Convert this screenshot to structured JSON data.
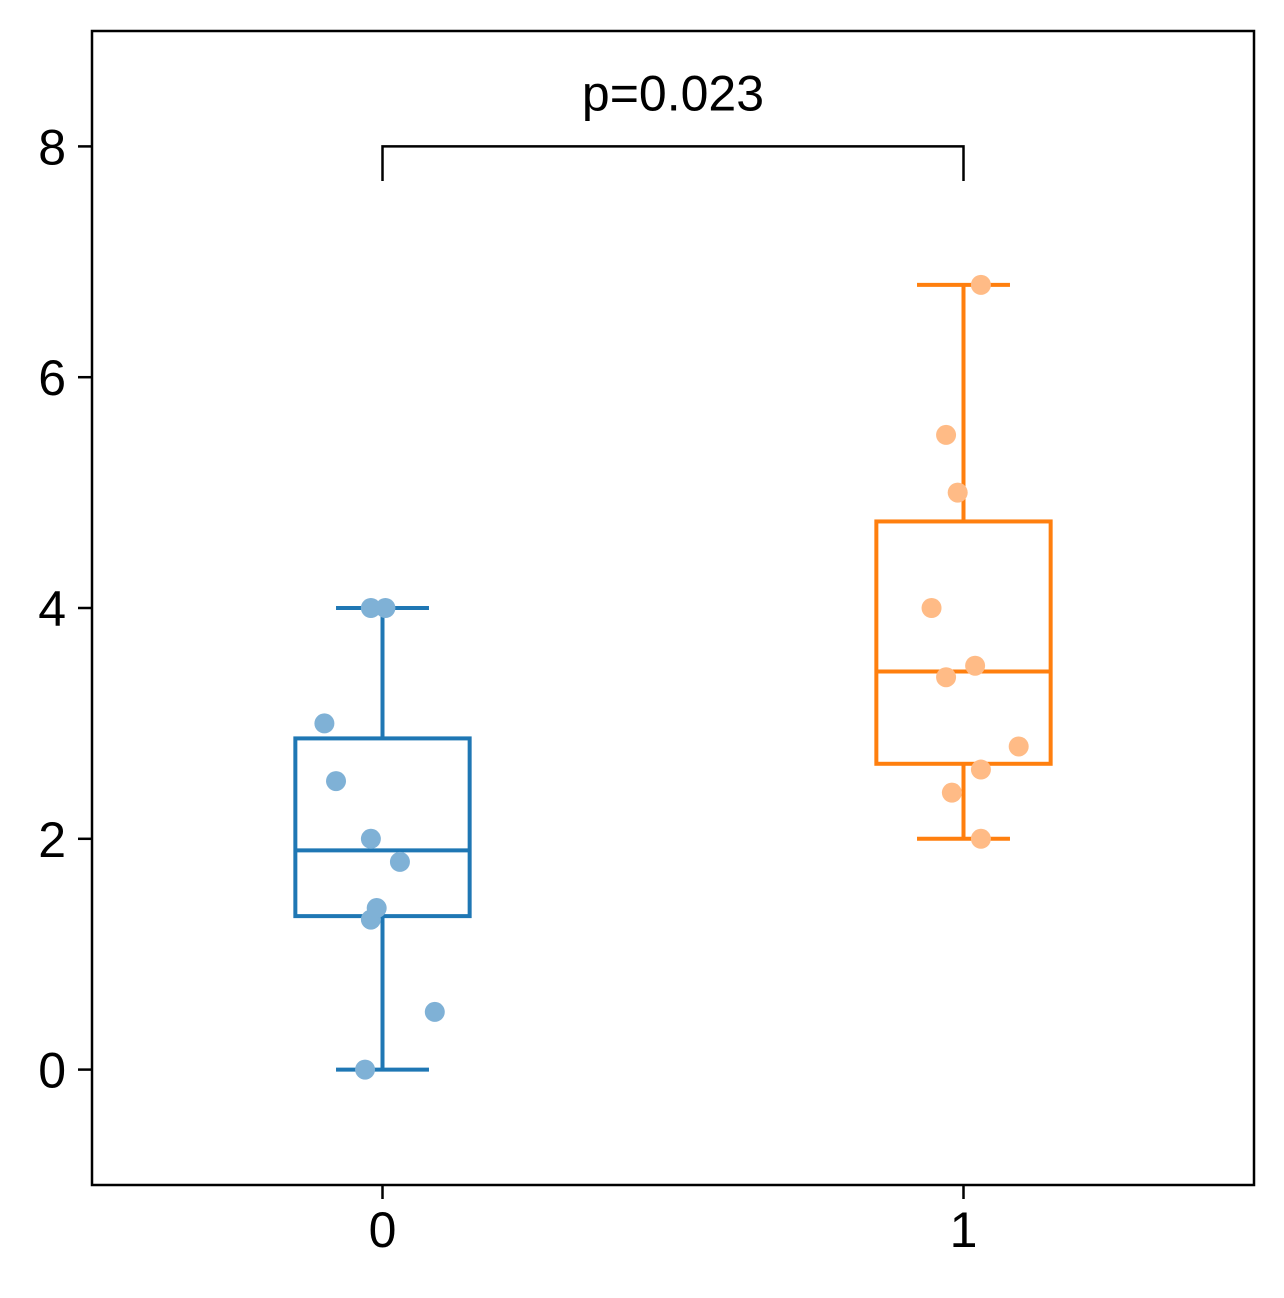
{
  "chart_data": {
    "type": "box",
    "categories": [
      "0",
      "1"
    ],
    "ylim": [
      -1,
      9
    ],
    "xlim": [
      -0.5,
      1.5
    ],
    "y_ticks": [
      0,
      2,
      4,
      6,
      8
    ],
    "y_tick_labels": [
      "0",
      "2",
      "4",
      "6",
      "8"
    ],
    "x_tick_labels": [
      "0",
      "1"
    ],
    "grid": false,
    "title": "",
    "xlabel": "",
    "ylabel": "",
    "series": [
      {
        "category": "0",
        "color": "#1f77b4",
        "point_color": "#7fb1d6",
        "whisker_low": 0.0,
        "q1": 1.33,
        "median": 1.9,
        "q3": 2.87,
        "whisker_high": 4.0,
        "points": [
          {
            "x": -0.03,
            "y": 0.0
          },
          {
            "x": 0.09,
            "y": 0.5
          },
          {
            "x": -0.02,
            "y": 1.3
          },
          {
            "x": -0.01,
            "y": 1.4
          },
          {
            "x": 0.03,
            "y": 1.8
          },
          {
            "x": -0.02,
            "y": 2.0
          },
          {
            "x": -0.08,
            "y": 2.5
          },
          {
            "x": -0.1,
            "y": 3.0
          },
          {
            "x": -0.02,
            "y": 4.0
          },
          {
            "x": 0.005,
            "y": 4.0
          }
        ]
      },
      {
        "category": "1",
        "color": "#ff7f0e",
        "point_color": "#ffbb86",
        "whisker_low": 2.0,
        "q1": 2.65,
        "median": 3.45,
        "q3": 4.75,
        "whisker_high": 6.8,
        "points": [
          {
            "x": 1.03,
            "y": 2.0
          },
          {
            "x": 0.98,
            "y": 2.4
          },
          {
            "x": 1.03,
            "y": 2.6
          },
          {
            "x": 1.095,
            "y": 2.8
          },
          {
            "x": 0.97,
            "y": 3.4
          },
          {
            "x": 1.02,
            "y": 3.5
          },
          {
            "x": 0.945,
            "y": 4.0
          },
          {
            "x": 0.99,
            "y": 5.0
          },
          {
            "x": 0.97,
            "y": 5.5
          },
          {
            "x": 1.03,
            "y": 6.8
          }
        ]
      }
    ],
    "annotation": {
      "text": "p=0.023",
      "x_from": 0,
      "x_to": 1,
      "y": 8.0,
      "drop": 0.3
    }
  }
}
